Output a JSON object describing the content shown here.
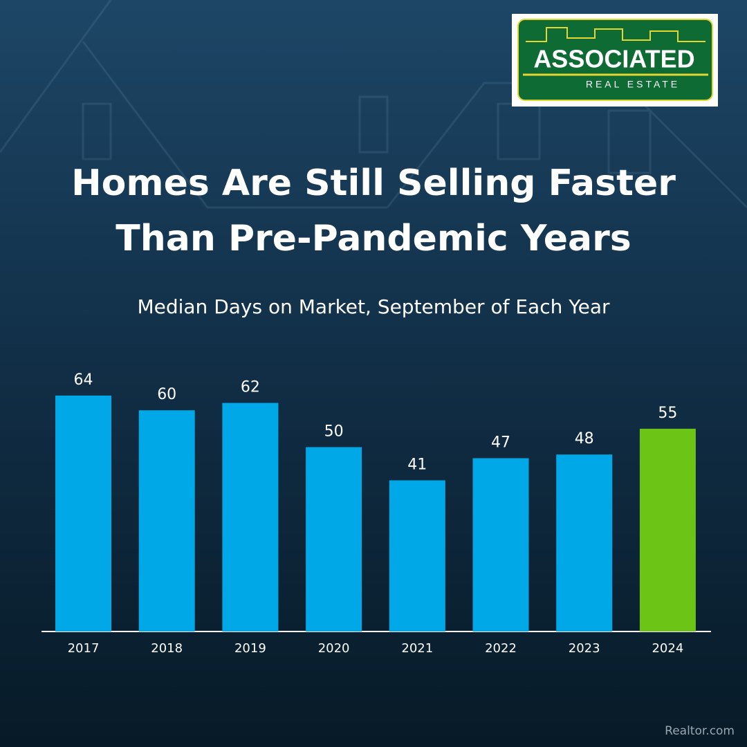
{
  "logo": {
    "name": "ASSOCIATED",
    "tagline": "REAL ESTATE"
  },
  "chart_data": {
    "type": "bar",
    "title": "Homes Are Still Selling Faster Than Pre-Pandemic Years",
    "subtitle": "Median Days on Market, September of Each Year",
    "categories": [
      "2017",
      "2018",
      "2019",
      "2020",
      "2021",
      "2022",
      "2023",
      "2024"
    ],
    "values": [
      64,
      60,
      62,
      50,
      41,
      47,
      48,
      55
    ],
    "colors": [
      "#00a8e8",
      "#00a8e8",
      "#00a8e8",
      "#00a8e8",
      "#00a8e8",
      "#00a8e8",
      "#00a8e8",
      "#6cc417"
    ],
    "source": "Realtor.com"
  }
}
